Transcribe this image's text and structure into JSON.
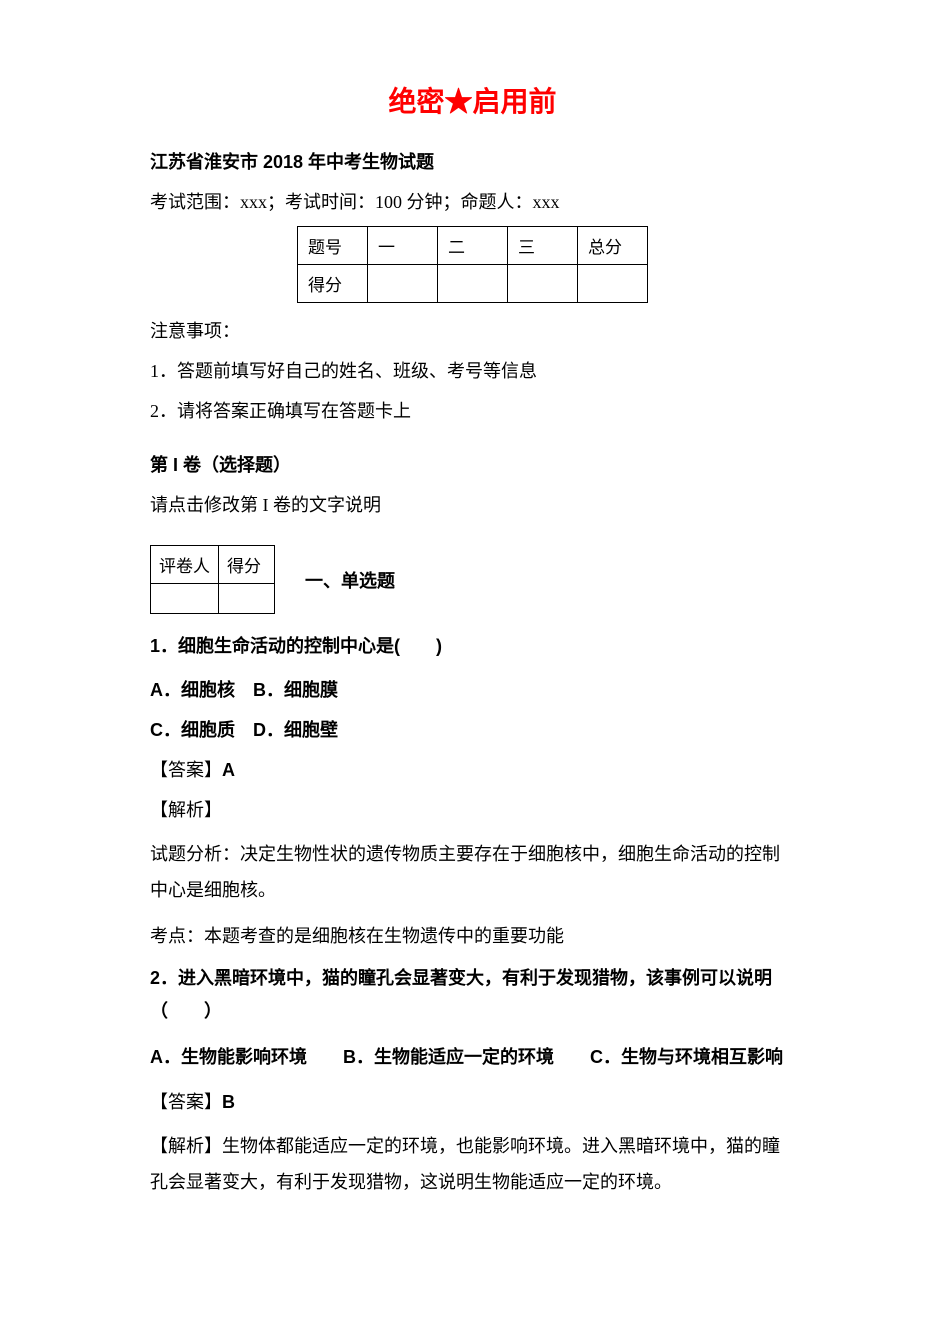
{
  "header": {
    "confidential": "绝密★启用前"
  },
  "exam": {
    "title": "江苏省淮安市 2018 年中考生物试题",
    "info": "考试范围：xxx；考试时间：100 分钟；命题人：xxx"
  },
  "score_table": {
    "h0": "题号",
    "h1": "一",
    "h2": "二",
    "h3": "三",
    "h4": "总分",
    "r0": "得分"
  },
  "notice": {
    "title": "注意事项：",
    "item1": "1．答题前填写好自己的姓名、班级、考号等信息",
    "item2": "2．请将答案正确填写在答题卡上"
  },
  "section1": {
    "title": "第 I 卷（选择题）",
    "desc": "请点击修改第 I 卷的文字说明"
  },
  "grader": {
    "c0": "评卷人",
    "c1": "得分",
    "type": "一、单选题"
  },
  "q1": {
    "text": "1．细胞生命活动的控制中心是(　　)",
    "opt1": "A．细胞核　B．细胞膜",
    "opt2": "C．细胞质　D．细胞壁",
    "ans_label": "【答案】",
    "ans": "A",
    "ana_label": "【解析】",
    "ana_text": "试题分析：决定生物性状的遗传物质主要存在于细胞核中，细胞生命活动的控制中心是细胞核。",
    "kaodian": "考点：本题考查的是细胞核在生物遗传中的重要功能"
  },
  "q2": {
    "text": "2．进入黑暗环境中，猫的瞳孔会显著变大，有利于发现猎物，该事例可以说明（　　）",
    "opts": "A．生物能影响环境　　B．生物能适应一定的环境　　C．生物与环境相互影响",
    "ans_label": "【答案】",
    "ans": "B",
    "ana_label": "【解析】",
    "ana_text": "生物体都能适应一定的环境，也能影响环境。进入黑暗环境中，猫的瞳孔会显著变大，有利于发现猎物，这说明生物能适应一定的环境。"
  }
}
